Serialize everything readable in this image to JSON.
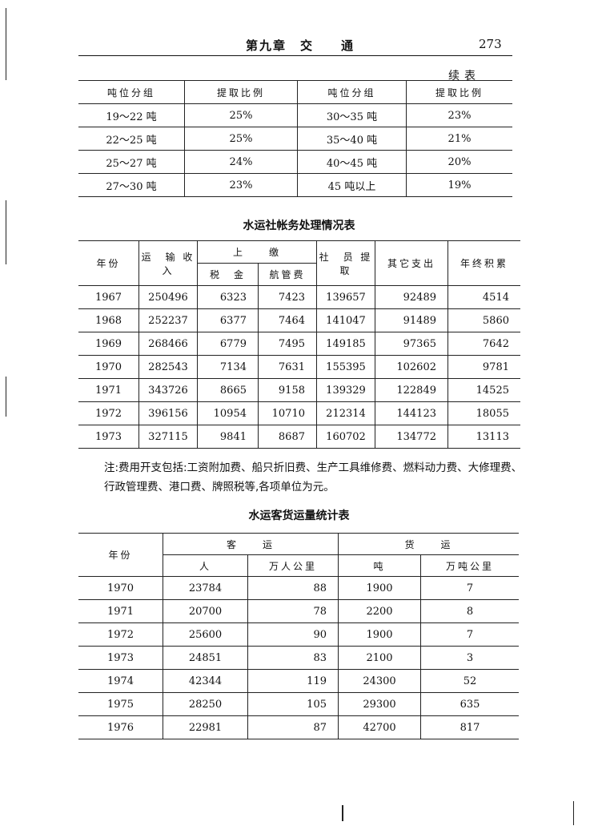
{
  "header": {
    "chapter": "第九章　交　　通",
    "page": "273"
  },
  "table1": {
    "continued": "续表",
    "headers": [
      "吨位分组",
      "提取比例",
      "吨位分组",
      "提取比例"
    ],
    "rows": [
      [
        "19～22 吨",
        "25%",
        "30～35 吨",
        "23%"
      ],
      [
        "22～25 吨",
        "25%",
        "35～40 吨",
        "21%"
      ],
      [
        "25～27 吨",
        "24%",
        "40～45 吨",
        "20%"
      ],
      [
        "27～30 吨",
        "23%",
        "45 吨以上",
        "19%"
      ]
    ]
  },
  "table2": {
    "title": "水运社帐务处理情况表",
    "headers": {
      "year": "年份",
      "income": "运　输 收　入",
      "shangjiao": "上　　缴",
      "tax": "税　金",
      "navfee": "航管费",
      "member": "社　员 提　取",
      "other": "其它支出",
      "accum": "年终积累"
    },
    "rows": [
      [
        "1967",
        "250496",
        "6323",
        "7423",
        "139657",
        "92489",
        "4514"
      ],
      [
        "1968",
        "252237",
        "6377",
        "7464",
        "141047",
        "91489",
        "5860"
      ],
      [
        "1969",
        "268466",
        "6779",
        "7495",
        "149185",
        "97365",
        "7642"
      ],
      [
        "1970",
        "282543",
        "7134",
        "7631",
        "155395",
        "102602",
        "9781"
      ],
      [
        "1971",
        "343726",
        "8665",
        "9158",
        "139329",
        "122849",
        "14525"
      ],
      [
        "1972",
        "396156",
        "10954",
        "10710",
        "212314",
        "144123",
        "18055"
      ],
      [
        "1973",
        "327115",
        "9841",
        "8687",
        "160702",
        "134772",
        "13113"
      ]
    ]
  },
  "note": "注:费用开支包括:工资附加费、船只折旧费、生产工具维修费、燃料动力费、大修理费、行政管理费、港口费、牌照税等,各项单位为元。",
  "table3": {
    "title": "水运客货运量统计表",
    "headers": {
      "year": "年份",
      "passenger": "客　　运",
      "freight": "货　　运",
      "people": "人",
      "pkm": "万人公里",
      "ton": "吨",
      "tkm": "万吨公里"
    },
    "rows": [
      [
        "1970",
        "23784",
        "88",
        "1900",
        "7"
      ],
      [
        "1971",
        "20700",
        "78",
        "2200",
        "8"
      ],
      [
        "1972",
        "25600",
        "90",
        "1900",
        "7"
      ],
      [
        "1973",
        "24851",
        "83",
        "2100",
        "3"
      ],
      [
        "1974",
        "42344",
        "119",
        "24300",
        "52"
      ],
      [
        "1975",
        "28250",
        "105",
        "29300",
        "635"
      ],
      [
        "1976",
        "22981",
        "87",
        "42700",
        "817"
      ]
    ]
  }
}
